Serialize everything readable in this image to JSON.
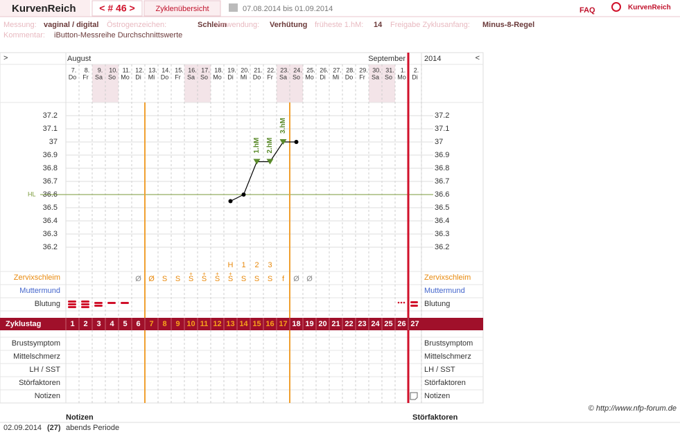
{
  "header": {
    "brand": "KurvenReich",
    "cycle_nav": "< # 46 >",
    "overview_tab": "Zyklenübersicht",
    "date_range": "07.08.2014 bis 01.09.2014",
    "faq": "FAQ",
    "logo": "KurvenReich"
  },
  "info": [
    {
      "label": "Messung:",
      "value": "vaginal / digital"
    },
    {
      "label": "Östrogenzeichen:",
      "value": "Schleim"
    },
    {
      "label": "Verwendung:",
      "value": "Verhütung"
    },
    {
      "label": "früheste 1.hM:",
      "value": "14"
    },
    {
      "label": "Freigabe Zyklusanfang:",
      "value": "Minus-8-Regel"
    }
  ],
  "comment": {
    "label": "Kommentar:",
    "value": "iButton-Messreihe Durchschnittswerte"
  },
  "chart_data": {
    "type": "line",
    "nav_prev": ">",
    "nav_next": "<",
    "months": [
      "August",
      "September"
    ],
    "year": "2014",
    "x": [
      "7.",
      "8.",
      "9.",
      "10.",
      "11.",
      "12.",
      "13.",
      "14.",
      "15.",
      "16.",
      "17.",
      "18.",
      "19.",
      "20.",
      "21.",
      "22.",
      "23.",
      "24.",
      "25.",
      "26.",
      "27.",
      "28.",
      "29.",
      "30.",
      "31.",
      "1.",
      "2."
    ],
    "weekdays": [
      "Do",
      "Fr",
      "Sa",
      "So",
      "Mo",
      "Di",
      "Mi",
      "Do",
      "Fr",
      "Sa",
      "So",
      "Mo",
      "Di",
      "Mi",
      "Do",
      "Fr",
      "Sa",
      "So",
      "Mo",
      "Di",
      "Mi",
      "Do",
      "Fr",
      "Sa",
      "So",
      "Mo",
      "Di"
    ],
    "cycle_days": [
      1,
      2,
      3,
      4,
      5,
      6,
      7,
      8,
      9,
      10,
      11,
      12,
      13,
      14,
      15,
      16,
      17,
      18,
      19,
      20,
      21,
      22,
      23,
      24,
      25,
      26,
      27
    ],
    "values": [
      null,
      null,
      null,
      null,
      null,
      null,
      null,
      null,
      null,
      null,
      null,
      null,
      36.55,
      36.6,
      36.85,
      36.85,
      37.0,
      37.0,
      null,
      null,
      null,
      null,
      null,
      null,
      null,
      null,
      null
    ],
    "annotations": [
      null,
      null,
      null,
      null,
      null,
      null,
      null,
      null,
      null,
      null,
      null,
      null,
      null,
      null,
      "1.hM",
      "2.hM",
      "3.hM",
      null,
      null,
      null,
      null,
      null,
      null,
      null,
      null,
      null,
      null
    ],
    "peak_markers": [
      null,
      null,
      null,
      null,
      null,
      null,
      null,
      null,
      null,
      null,
      null,
      null,
      "H",
      "1",
      "2",
      "3",
      null,
      null,
      null,
      null,
      null,
      null,
      null,
      null,
      null,
      null,
      null
    ],
    "cervix": [
      null,
      null,
      null,
      null,
      null,
      "Ø",
      "Ø",
      "S",
      "S",
      "S",
      "S",
      "S",
      "S",
      "S",
      "S",
      "S",
      "f",
      "Ø",
      "Ø",
      null,
      null,
      null,
      null,
      null,
      null,
      null,
      null
    ],
    "cervix_marks": [
      null,
      null,
      null,
      null,
      null,
      null,
      null,
      null,
      null,
      "+",
      "+",
      "+",
      "+",
      null,
      null,
      null,
      null,
      null,
      null,
      null,
      null,
      null,
      null,
      null,
      null,
      null,
      null
    ],
    "ylim": [
      36.0,
      37.3
    ],
    "yticks": [
      36.2,
      36.3,
      36.4,
      36.5,
      36.6,
      36.7,
      36.8,
      36.9,
      37,
      37.1,
      37.2
    ],
    "cover_line": 36.6,
    "cover_line_label": "HL",
    "line_color": "#000000",
    "marker_color": "#5a8a2a",
    "fertile_window": [
      7,
      17
    ],
    "new_cycle_day": 27,
    "row_labels": {
      "cervix": "Zervixschleim",
      "cervix_position": "Muttermund",
      "bleeding": "Blutung",
      "cycle_day": "Zyklustag",
      "breast": "Brustsymptom",
      "mittelschmerz": "Mittelschmerz",
      "lh": "LH / SST",
      "disturbances": "Störfaktoren",
      "notes": "Notizen"
    }
  },
  "copyright": "© http://www.nfp-forum.de",
  "notes_table": {
    "headers": [
      "Notizen",
      "Störfaktoren"
    ],
    "rows": [
      [
        "02.09.2014",
        "(27)",
        "abends Periode"
      ]
    ]
  }
}
